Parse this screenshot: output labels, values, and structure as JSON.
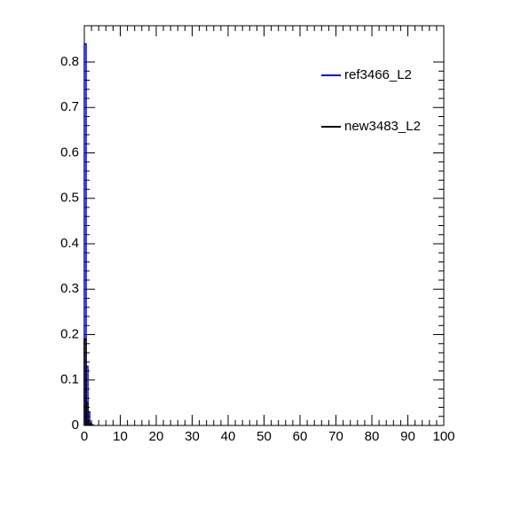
{
  "chart_data": {
    "type": "histogram",
    "bins": [
      0,
      0.5,
      1,
      1.5,
      2,
      2.5
    ],
    "series": [
      {
        "name": "ref3466_L2",
        "color": "#0000cc",
        "values": [
          0.84,
          0.13,
          0.03,
          0.005,
          0.001
        ]
      },
      {
        "name": "new3483_L2",
        "color": "#000000",
        "values": [
          0.19,
          0.05,
          0.01,
          0.002,
          0.0005
        ]
      }
    ],
    "xlim": [
      0,
      100
    ],
    "xticks": [
      0,
      10,
      20,
      30,
      40,
      50,
      60,
      70,
      80,
      90,
      100
    ],
    "ylim": [
      0,
      0.88
    ],
    "yticks": [
      0,
      0.1,
      0.2,
      0.3,
      0.4,
      0.5,
      0.6,
      0.7,
      0.8
    ],
    "legend": "top-right"
  }
}
